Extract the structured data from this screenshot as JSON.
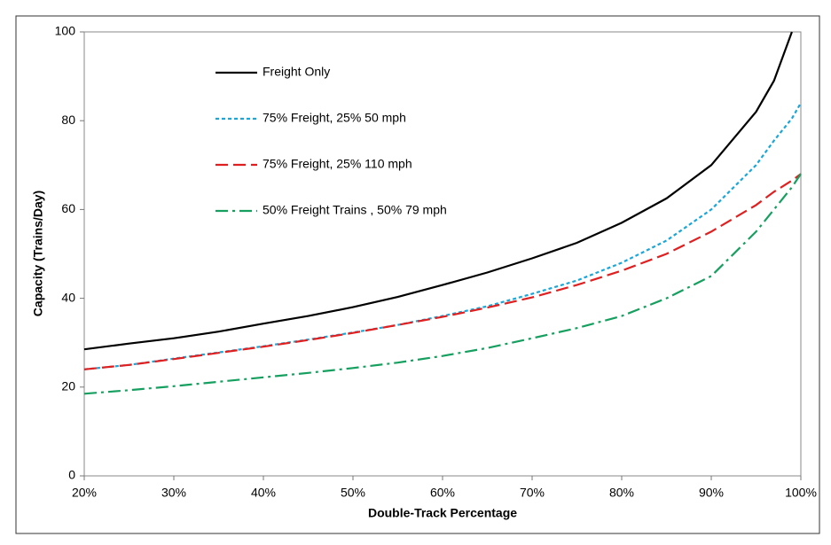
{
  "chart_data": {
    "type": "line",
    "x_label": "Double-Track Percentage",
    "y_label": "Capacity (Trains/Day)",
    "x": [
      20,
      25,
      30,
      35,
      40,
      45,
      50,
      55,
      60,
      65,
      70,
      75,
      80,
      85,
      90,
      95,
      97,
      99,
      100
    ],
    "series": [
      {
        "name": "Freight Only",
        "color": "#000000",
        "dash": "solid",
        "values": [
          28.5,
          29.8,
          31,
          32.5,
          34.3,
          36,
          38,
          40.3,
          43,
          45.8,
          49,
          52.5,
          57,
          62.5,
          70,
          82,
          89,
          100,
          null
        ]
      },
      {
        "name": "75% Freight, 25%  50 mph",
        "color": "#1aa7d8",
        "dash": "dotted",
        "values": [
          24,
          25,
          26.4,
          27.8,
          29.2,
          30.7,
          32.3,
          34,
          36,
          38.2,
          41,
          44,
          48,
          53,
          60,
          70,
          75.5,
          80.5,
          84
        ]
      },
      {
        "name": "75% Freight, 25%  110 mph",
        "color": "#e02020",
        "dash": "dashed",
        "values": [
          24,
          25,
          26.3,
          27.7,
          29.1,
          30.6,
          32.2,
          34,
          35.8,
          37.9,
          40.2,
          43,
          46.2,
          50,
          55,
          61,
          64,
          66.5,
          68
        ]
      },
      {
        "name": "50% Freight Trains , 50%  79 mph",
        "color": "#16a060",
        "dash": "dashdot",
        "values": [
          18.5,
          19.3,
          20.2,
          21.2,
          22.2,
          23.2,
          24.3,
          25.5,
          27,
          28.8,
          31,
          33.3,
          36,
          40,
          45,
          55,
          60,
          65,
          68
        ]
      }
    ],
    "xlim": [
      20,
      100
    ],
    "xticks": [
      {
        "value": 20,
        "label": "20%"
      },
      {
        "value": 30,
        "label": "30%"
      },
      {
        "value": 40,
        "label": "40%"
      },
      {
        "value": 50,
        "label": "50%"
      },
      {
        "value": 60,
        "label": "60%"
      },
      {
        "value": 70,
        "label": "70%"
      },
      {
        "value": 80,
        "label": "80%"
      },
      {
        "value": 90,
        "label": "90%"
      },
      {
        "value": 100,
        "label": "100%"
      }
    ],
    "ylim": [
      0,
      100
    ],
    "yticks": [
      0,
      20,
      40,
      60,
      80,
      100
    ],
    "grid": false,
    "legend": "upper-left"
  }
}
